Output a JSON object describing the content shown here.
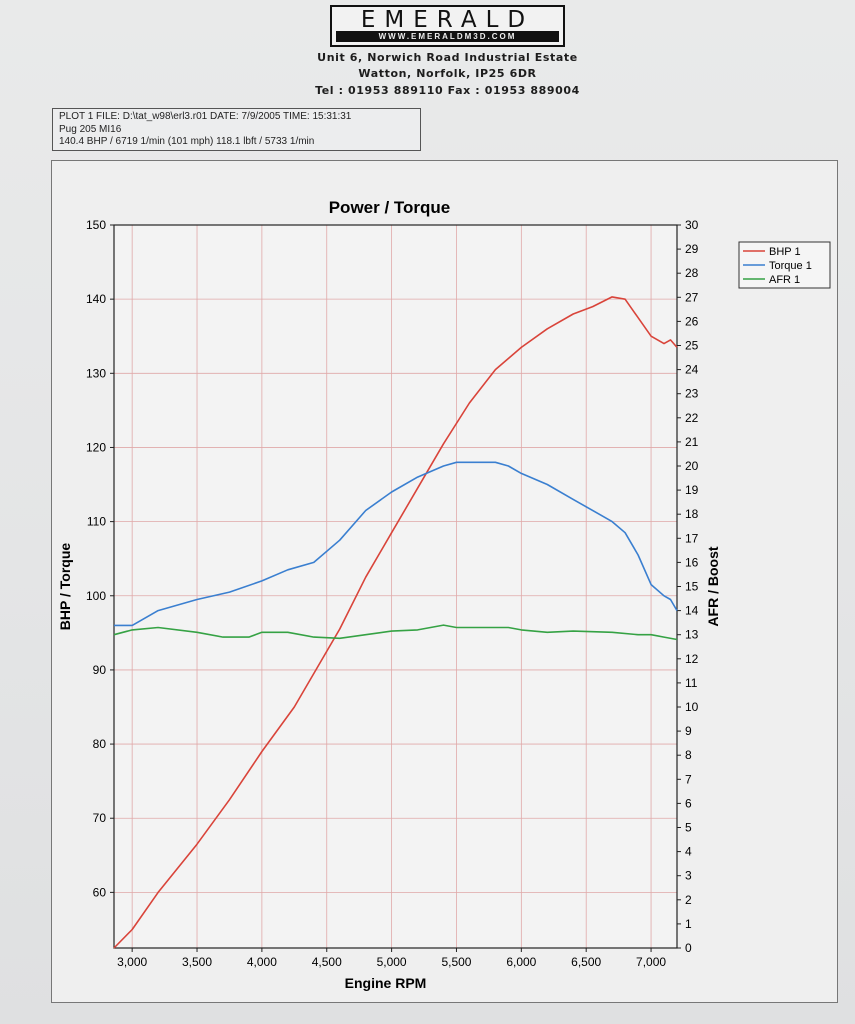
{
  "header": {
    "logo_word": "EMERALD",
    "logo_url": "WWW.EMERALDM3D.COM",
    "address_line1": "Unit 6, Norwich Road Industrial Estate",
    "address_line2": "Watton, Norfolk, IP25 6DR",
    "contact_line": "Tel : 01953 889110    Fax : 01953 889004"
  },
  "info": {
    "line1": "PLOT 1 FILE: D:\\tat_w98\\erl3.r01  DATE: 7/9/2005  TIME: 15:31:31",
    "line2": "Pug 205 MI16",
    "line3": "140.4 BHP / 6719 1/min (101 mph)    118.1 lbft / 5733 1/min"
  },
  "colors": {
    "bhp": "#d9443a",
    "torque": "#3a7fd0",
    "afr": "#35a244",
    "grid": "#e0a8a8",
    "axis": "#222222"
  },
  "chart_data": {
    "type": "line",
    "title": "Power / Torque",
    "xlabel": "Engine RPM",
    "ylabel": "BHP / Torque",
    "y2label": "AFR / Boost",
    "xlim": [
      2860,
      7200
    ],
    "ylim": [
      52.5,
      150
    ],
    "y2lim": [
      0,
      30
    ],
    "xticks": [
      3000,
      3500,
      4000,
      4500,
      5000,
      5500,
      6000,
      6500,
      7000
    ],
    "xtick_labels": [
      "3,000",
      "3,500",
      "4,000",
      "4,500",
      "5,000",
      "5,500",
      "6,000",
      "6,500",
      "7,000"
    ],
    "yticks": [
      60,
      70,
      80,
      90,
      100,
      110,
      120,
      130,
      140,
      150
    ],
    "y2ticks": [
      0,
      1,
      2,
      3,
      4,
      5,
      6,
      7,
      8,
      9,
      10,
      11,
      12,
      13,
      14,
      15,
      16,
      17,
      18,
      19,
      20,
      21,
      22,
      23,
      24,
      25,
      26,
      27,
      28,
      29,
      30
    ],
    "grid": true,
    "legend_position": "right",
    "series": [
      {
        "name": "BHP 1",
        "axis": "left",
        "points": [
          [
            2860,
            52.5
          ],
          [
            3000,
            55
          ],
          [
            3200,
            60
          ],
          [
            3500,
            66.5
          ],
          [
            3750,
            72.5
          ],
          [
            4000,
            79
          ],
          [
            4250,
            85
          ],
          [
            4500,
            92.5
          ],
          [
            4600,
            95.5
          ],
          [
            4800,
            102.5
          ],
          [
            5000,
            108.5
          ],
          [
            5200,
            114.5
          ],
          [
            5400,
            120.5
          ],
          [
            5600,
            126
          ],
          [
            5800,
            130.5
          ],
          [
            6000,
            133.5
          ],
          [
            6200,
            136
          ],
          [
            6400,
            138
          ],
          [
            6550,
            139
          ],
          [
            6700,
            140.3
          ],
          [
            6800,
            140
          ],
          [
            7000,
            135
          ],
          [
            7100,
            134
          ],
          [
            7150,
            134.5
          ],
          [
            7200,
            133.5
          ]
        ]
      },
      {
        "name": "Torque 1",
        "axis": "left",
        "points": [
          [
            2860,
            96
          ],
          [
            3000,
            96
          ],
          [
            3200,
            98
          ],
          [
            3500,
            99.5
          ],
          [
            3750,
            100.5
          ],
          [
            4000,
            102
          ],
          [
            4200,
            103.5
          ],
          [
            4400,
            104.5
          ],
          [
            4600,
            107.5
          ],
          [
            4800,
            111.5
          ],
          [
            5000,
            114
          ],
          [
            5200,
            116
          ],
          [
            5400,
            117.5
          ],
          [
            5500,
            118
          ],
          [
            5700,
            118
          ],
          [
            5800,
            118
          ],
          [
            5900,
            117.5
          ],
          [
            6000,
            116.5
          ],
          [
            6200,
            115
          ],
          [
            6400,
            113
          ],
          [
            6600,
            111
          ],
          [
            6700,
            110
          ],
          [
            6800,
            108.5
          ],
          [
            6900,
            105.5
          ],
          [
            7000,
            101.5
          ],
          [
            7100,
            100
          ],
          [
            7150,
            99.5
          ],
          [
            7200,
            98
          ]
        ]
      },
      {
        "name": "AFR 1",
        "axis": "right",
        "points": [
          [
            2860,
            13
          ],
          [
            3000,
            13.2
          ],
          [
            3200,
            13.3
          ],
          [
            3500,
            13.1
          ],
          [
            3700,
            12.9
          ],
          [
            3900,
            12.9
          ],
          [
            4000,
            13.1
          ],
          [
            4200,
            13.1
          ],
          [
            4400,
            12.9
          ],
          [
            4600,
            12.85
          ],
          [
            4800,
            13
          ],
          [
            5000,
            13.15
          ],
          [
            5200,
            13.2
          ],
          [
            5400,
            13.4
          ],
          [
            5500,
            13.3
          ],
          [
            5700,
            13.3
          ],
          [
            5900,
            13.3
          ],
          [
            6000,
            13.2
          ],
          [
            6200,
            13.1
          ],
          [
            6400,
            13.15
          ],
          [
            6700,
            13.1
          ],
          [
            6900,
            13.0
          ],
          [
            7000,
            13.0
          ],
          [
            7100,
            12.9
          ],
          [
            7200,
            12.8
          ]
        ]
      }
    ]
  }
}
